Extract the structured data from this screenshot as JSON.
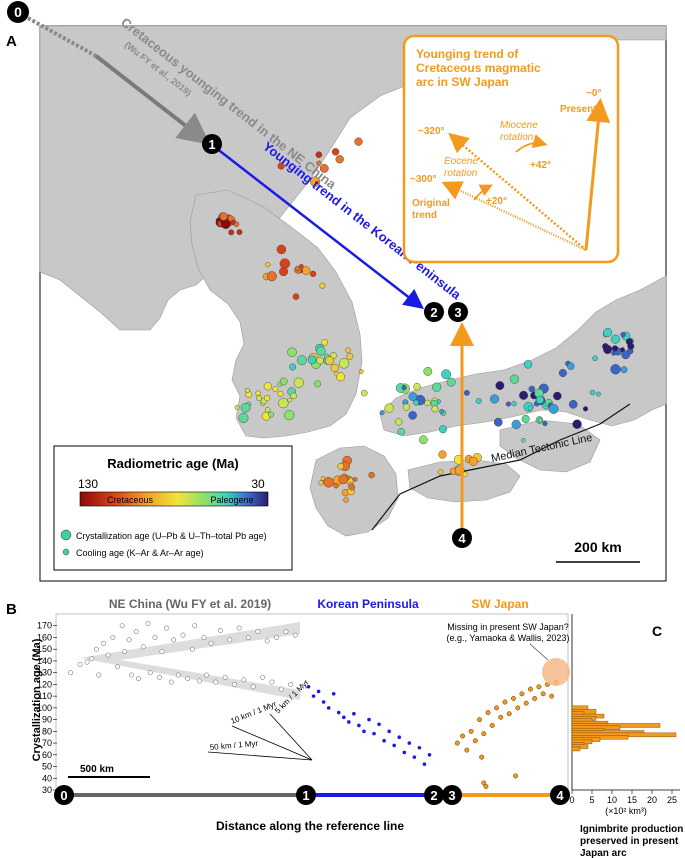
{
  "panel_labels": {
    "a": "A",
    "b": "B",
    "c": "C"
  },
  "map": {
    "ne_china_label": "Cretaceous younging trend in the NE China",
    "ne_china_ref": "(Wu FY et al., 2019)",
    "korea_trend_label": "Younging trend in the Korean Peninsula",
    "median_tectonic_line": "Median Tectonic Line",
    "scale_bar": "200 km",
    "reference_points": [
      "0",
      "1",
      "2",
      "3",
      "4"
    ],
    "colors": {
      "sea": "#ffffff",
      "land": "#c8c8c8",
      "ne_trend": "#8a8a8a",
      "korea_trend": "#1a1ae6",
      "sw_japan": "#f39a1e"
    }
  },
  "inset": {
    "title": "Younging trend of Cretaceous magmatic arc in SW Japan",
    "present": "Present",
    "present_angle": "~0°",
    "miocene": "Miocene rotation",
    "miocene_angle": "+42°",
    "angle_320": "~320°",
    "angle_300": "~300°",
    "eocene": "Eocene rotation",
    "eocene_angle": "+20°",
    "original_trend": "Original trend"
  },
  "legend": {
    "title": "Radiometric age (Ma)",
    "max": "130",
    "min": "30",
    "cretaceous": "Cretaceous",
    "paleogene": "Paleogene",
    "crystallization": "Crystallization age (U–Pb & U–Th–total Pb age)",
    "cooling": "Cooling age (K–Ar & Ar–Ar age)"
  },
  "panel_b": {
    "ne_china_title": "NE China (Wu FY et al. 2019)",
    "korea_title": "Korean Peninsula",
    "sw_japan_title": "SW Japan",
    "missing_note_1": "Missing in present SW Japan?",
    "missing_note_2": "(e.g., Yamaoka & Wallis, 2023)",
    "rate_10": "10 km / 1 Myr",
    "rate_5": "5 km / 1 Myr",
    "rate_50": "50 km / 1 Myr",
    "scale_bar": "500 km",
    "x_axis_label": "Distance along the reference line",
    "y_axis_label": "Crystallization age (Ma)",
    "ref_markers": [
      "0",
      "1",
      "2",
      "3",
      "4"
    ]
  },
  "panel_c": {
    "ylabel_1": "Ignimbrite production",
    "ylabel_2": "preserved in present",
    "ylabel_3": "Japan arc",
    "xunit": "(×10² km³)"
  },
  "chart_data": [
    {
      "type": "scatter",
      "title": "",
      "ylabel": "Crystallization age (Ma)",
      "xlabel": "Distance along the reference line",
      "ylim": [
        30,
        180
      ],
      "yticks": [
        30,
        40,
        50,
        60,
        70,
        80,
        90,
        100,
        110,
        120,
        130,
        140,
        150,
        160,
        170
      ],
      "series": [
        {
          "name": "NE China (Wu FY et al. 2019)",
          "color": "#ffffff",
          "stroke": "#555555",
          "points": [
            [
              0.02,
              130
            ],
            [
              0.06,
              137
            ],
            [
              0.09,
              139
            ],
            [
              0.11,
              142
            ],
            [
              0.13,
              150
            ],
            [
              0.14,
              128
            ],
            [
              0.16,
              155
            ],
            [
              0.18,
              145
            ],
            [
              0.2,
              160
            ],
            [
              0.22,
              135
            ],
            [
              0.24,
              170
            ],
            [
              0.25,
              148
            ],
            [
              0.27,
              158
            ],
            [
              0.28,
              128
            ],
            [
              0.3,
              165
            ],
            [
              0.31,
              125
            ],
            [
              0.33,
              152
            ],
            [
              0.35,
              172
            ],
            [
              0.36,
              130
            ],
            [
              0.38,
              160
            ],
            [
              0.4,
              126
            ],
            [
              0.41,
              148
            ],
            [
              0.43,
              168
            ],
            [
              0.45,
              122
            ],
            [
              0.46,
              158
            ],
            [
              0.48,
              128
            ],
            [
              0.5,
              162
            ],
            [
              0.52,
              125
            ],
            [
              0.54,
              150
            ],
            [
              0.55,
              170
            ],
            [
              0.57,
              123
            ],
            [
              0.59,
              160
            ],
            [
              0.6,
              128
            ],
            [
              0.62,
              155
            ],
            [
              0.64,
              122
            ],
            [
              0.66,
              166
            ],
            [
              0.68,
              126
            ],
            [
              0.7,
              158
            ],
            [
              0.72,
              120
            ],
            [
              0.74,
              168
            ],
            [
              0.76,
              124
            ],
            [
              0.78,
              160
            ],
            [
              0.8,
              118
            ],
            [
              0.82,
              165
            ],
            [
              0.84,
              126
            ],
            [
              0.86,
              157
            ],
            [
              0.88,
              122
            ],
            [
              0.9,
              160
            ],
            [
              0.92,
              116
            ],
            [
              0.94,
              165
            ],
            [
              0.96,
              120
            ],
            [
              0.98,
              162
            ]
          ]
        },
        {
          "name": "Korean Peninsula",
          "color": "#1a1ae6",
          "points": [
            [
              0.02,
              118
            ],
            [
              0.06,
              110
            ],
            [
              0.1,
              114
            ],
            [
              0.14,
              105
            ],
            [
              0.18,
              100
            ],
            [
              0.22,
              112
            ],
            [
              0.26,
              96
            ],
            [
              0.3,
              92
            ],
            [
              0.34,
              88
            ],
            [
              0.38,
              95
            ],
            [
              0.42,
              85
            ],
            [
              0.46,
              80
            ],
            [
              0.5,
              90
            ],
            [
              0.54,
              78
            ],
            [
              0.58,
              86
            ],
            [
              0.62,
              72
            ],
            [
              0.66,
              80
            ],
            [
              0.7,
              68
            ],
            [
              0.74,
              75
            ],
            [
              0.78,
              62
            ],
            [
              0.82,
              70
            ],
            [
              0.86,
              58
            ],
            [
              0.9,
              66
            ],
            [
              0.94,
              52
            ],
            [
              0.98,
              60
            ]
          ]
        },
        {
          "name": "SW Japan",
          "color": "#f39a1e",
          "stroke": "#5a3000",
          "points": [
            [
              0.05,
              70
            ],
            [
              0.1,
              76
            ],
            [
              0.14,
              64
            ],
            [
              0.18,
              80
            ],
            [
              0.22,
              72
            ],
            [
              0.26,
              90
            ],
            [
              0.3,
              78
            ],
            [
              0.34,
              96
            ],
            [
              0.38,
              85
            ],
            [
              0.42,
              100
            ],
            [
              0.46,
              92
            ],
            [
              0.5,
              105
            ],
            [
              0.54,
              95
            ],
            [
              0.58,
              108
            ],
            [
              0.62,
              100
            ],
            [
              0.66,
              112
            ],
            [
              0.7,
              104
            ],
            [
              0.74,
              116
            ],
            [
              0.78,
              108
            ],
            [
              0.82,
              118
            ],
            [
              0.86,
              112
            ],
            [
              0.9,
              120
            ],
            [
              0.94,
              110
            ],
            [
              0.98,
              122
            ],
            [
              0.3,
              36
            ],
            [
              0.32,
              33
            ],
            [
              0.6,
              42
            ],
            [
              0.28,
              58
            ]
          ]
        }
      ]
    },
    {
      "type": "bar",
      "title": "",
      "orientation": "horizontal",
      "xlabel": "(×10² km³)",
      "ylabel": "Ignimbrite production preserved in present Japan arc",
      "xlim": [
        0,
        25
      ],
      "xticks": [
        0,
        5,
        10,
        15,
        20,
        25
      ],
      "categories": [
        100,
        97,
        95,
        93,
        91,
        89,
        87,
        85,
        83,
        81,
        79,
        77,
        75,
        73,
        71,
        69,
        67,
        65
      ],
      "values": [
        4,
        6,
        3,
        8,
        6,
        5,
        9,
        22,
        12,
        8,
        18,
        26,
        14,
        7,
        5,
        3,
        4,
        2
      ]
    }
  ]
}
